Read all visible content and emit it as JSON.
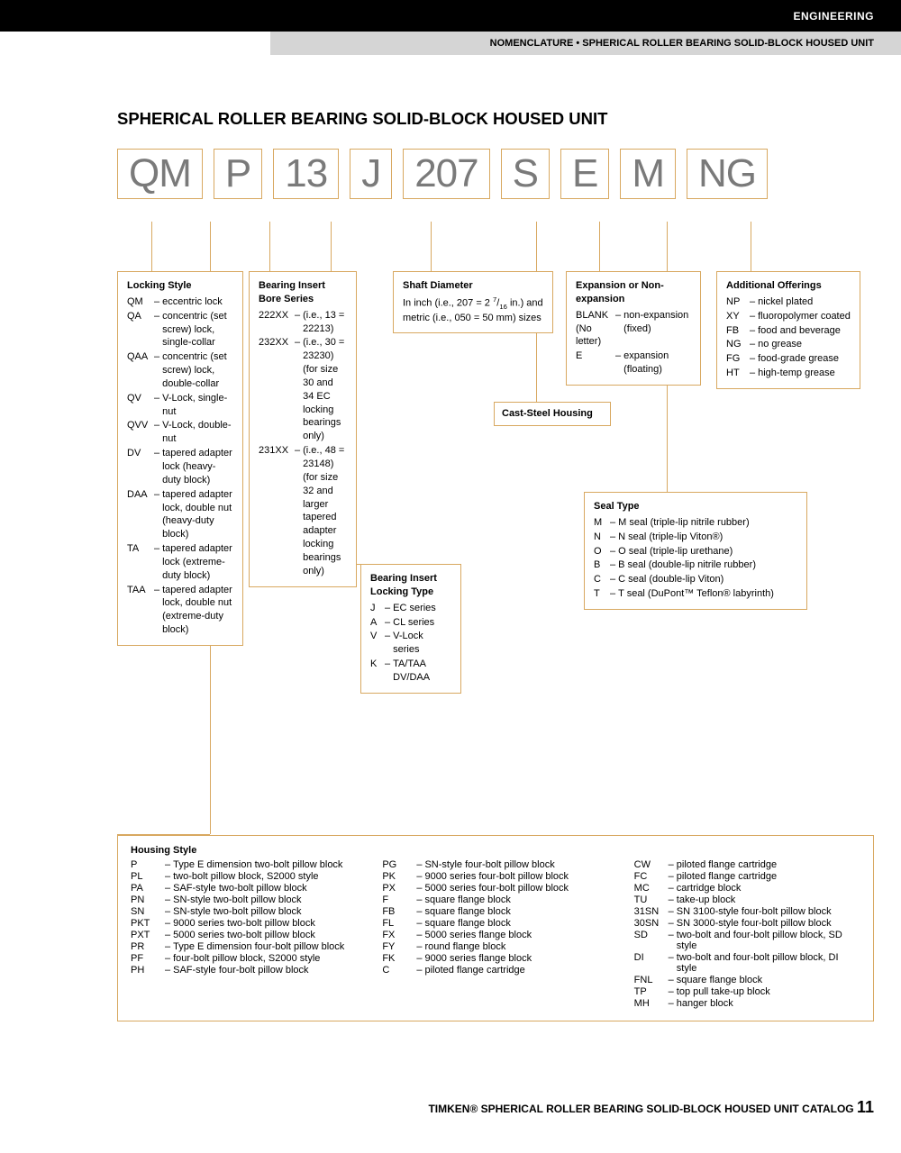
{
  "header": {
    "section": "ENGINEERING",
    "subtitle": "NOMENCLATURE • SPHERICAL ROLLER BEARING SOLID-BLOCK HOUSED UNIT"
  },
  "title": "SPHERICAL ROLLER BEARING SOLID-BLOCK HOUSED UNIT",
  "codes": [
    "QM",
    "P",
    "13",
    "J",
    "207",
    "S",
    "E",
    "M",
    "NG"
  ],
  "locking_style": {
    "title": "Locking Style",
    "items": [
      {
        "k": "QM",
        "v": "eccentric lock"
      },
      {
        "k": "QA",
        "v": "concentric (set screw) lock, single-collar"
      },
      {
        "k": "QAA",
        "v": "concentric (set screw) lock, double-collar"
      },
      {
        "k": "QV",
        "v": "V-Lock, single-nut"
      },
      {
        "k": "QVV",
        "v": "V-Lock, double-nut"
      },
      {
        "k": "DV",
        "v": "tapered adapter lock (heavy-duty block)"
      },
      {
        "k": "DAA",
        "v": "tapered adapter lock, double nut (heavy-duty block)"
      },
      {
        "k": "TA",
        "v": "tapered adapter lock (extreme-duty block)"
      },
      {
        "k": "TAA",
        "v": "tapered adapter lock, double nut (extreme-duty block)"
      }
    ]
  },
  "bore_series": {
    "title": "Bearing Insert Bore Series",
    "items": [
      {
        "k": "222XX",
        "v": "(i.e., 13 = 22213)"
      },
      {
        "k": "232XX",
        "v": "(i.e., 30 = 23230) (for size 30 and 34 EC locking bearings only)"
      },
      {
        "k": "231XX",
        "v": "(i.e., 48 = 23148) (for size 32 and larger tapered adapter locking bearings only)"
      }
    ]
  },
  "locking_type": {
    "title": "Bearing Insert Locking Type",
    "items": [
      {
        "k": "J",
        "v": "EC series"
      },
      {
        "k": "A",
        "v": "CL series"
      },
      {
        "k": "V",
        "v": "V-Lock series"
      },
      {
        "k": "K",
        "v": "TA/TAA DV/DAA"
      }
    ]
  },
  "shaft_diameter": {
    "title": "Shaft Diameter",
    "text": "In inch (i.e., 207 = 2 7/16 in.) and metric (i.e., 050 = 50 mm) sizes"
  },
  "cast_steel": "Cast-Steel Housing",
  "expansion": {
    "title": "Expansion or Non-expansion",
    "items": [
      {
        "k": "BLANK (No letter)",
        "v": "non-expansion (fixed)"
      },
      {
        "k": "E",
        "v": "expansion (floating)"
      }
    ]
  },
  "seal_type": {
    "title": "Seal Type",
    "items": [
      {
        "k": "M",
        "v": "M seal (triple-lip nitrile rubber)"
      },
      {
        "k": "N",
        "v": "N seal (triple-lip Viton®)"
      },
      {
        "k": "O",
        "v": "O seal (triple-lip urethane)"
      },
      {
        "k": "B",
        "v": "B seal (double-lip nitrile rubber)"
      },
      {
        "k": "C",
        "v": "C seal (double-lip Viton)"
      },
      {
        "k": "T",
        "v": "T seal (DuPont™ Teflon® labyrinth)"
      }
    ]
  },
  "additional": {
    "title": "Additional Offerings",
    "items": [
      {
        "k": "NP",
        "v": "nickel plated"
      },
      {
        "k": "XY",
        "v": "fluoropolymer coated"
      },
      {
        "k": "FB",
        "v": "food and beverage"
      },
      {
        "k": "NG",
        "v": "no grease"
      },
      {
        "k": "FG",
        "v": "food-grade grease"
      },
      {
        "k": "HT",
        "v": "high-temp grease"
      }
    ]
  },
  "housing": {
    "title": "Housing Style",
    "cols": [
      [
        {
          "k": "P",
          "v": "Type E dimension two-bolt pillow block"
        },
        {
          "k": "PL",
          "v": "two-bolt pillow block, S2000 style"
        },
        {
          "k": "PA",
          "v": "SAF-style two-bolt pillow block"
        },
        {
          "k": "PN",
          "v": "SN-style two-bolt pillow block"
        },
        {
          "k": "SN",
          "v": "SN-style two-bolt pillow block"
        },
        {
          "k": "PKT",
          "v": "9000 series two-bolt pillow block"
        },
        {
          "k": "PXT",
          "v": "5000 series two-bolt pillow block"
        },
        {
          "k": "PR",
          "v": "Type E dimension four-bolt pillow block"
        },
        {
          "k": "PF",
          "v": "four-bolt pillow block, S2000 style"
        },
        {
          "k": "PH",
          "v": "SAF-style four-bolt pillow block"
        }
      ],
      [
        {
          "k": "PG",
          "v": "SN-style four-bolt pillow block"
        },
        {
          "k": "PK",
          "v": "9000 series four-bolt pillow block"
        },
        {
          "k": "PX",
          "v": "5000 series four-bolt pillow block"
        },
        {
          "k": "F",
          "v": "square flange block"
        },
        {
          "k": "FB",
          "v": "square flange block"
        },
        {
          "k": "FL",
          "v": "square flange block"
        },
        {
          "k": "FX",
          "v": "5000 series flange block"
        },
        {
          "k": "FY",
          "v": "round flange block"
        },
        {
          "k": "FK",
          "v": "9000 series flange block"
        },
        {
          "k": "C",
          "v": "piloted flange cartridge"
        }
      ],
      [
        {
          "k": "CW",
          "v": "piloted flange cartridge"
        },
        {
          "k": "FC",
          "v": "piloted flange cartridge"
        },
        {
          "k": "MC",
          "v": "cartridge block"
        },
        {
          "k": "TU",
          "v": "take-up block"
        },
        {
          "k": "31SN",
          "v": "SN 3100-style four-bolt pillow block"
        },
        {
          "k": "30SN",
          "v": "SN 3000-style four-bolt pillow block"
        },
        {
          "k": "SD",
          "v": "two-bolt and four-bolt pillow block, SD style"
        },
        {
          "k": "DI",
          "v": "two-bolt and four-bolt pillow block, DI style"
        },
        {
          "k": "FNL",
          "v": "square flange block"
        },
        {
          "k": "TP",
          "v": "top pull take-up block"
        },
        {
          "k": "MH",
          "v": "hanger block"
        }
      ]
    ]
  },
  "footer": {
    "text": "TIMKEN® SPHERICAL ROLLER BEARING SOLID-BLOCK HOUSED UNIT CATALOG",
    "page": "11"
  },
  "colors": {
    "box_border": "#d8a860",
    "code_text": "#7a7a7a",
    "grey_bar": "#d5d5d5"
  }
}
